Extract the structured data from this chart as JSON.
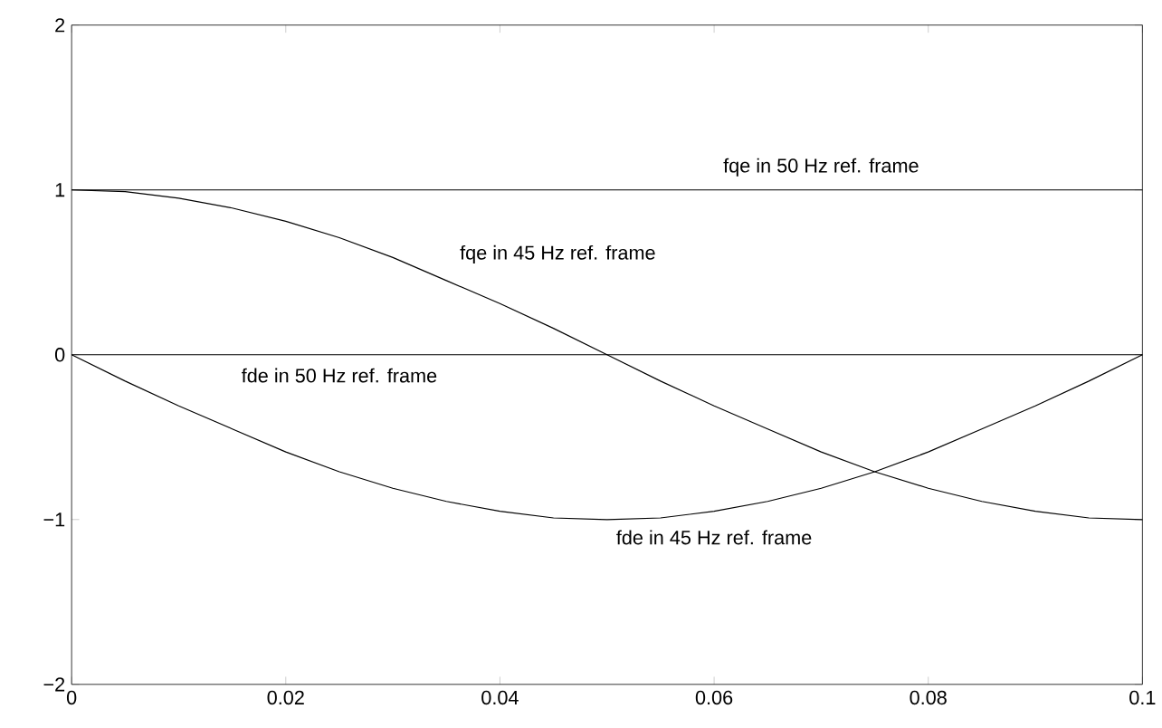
{
  "chart_data": {
    "type": "line",
    "x": [
      0,
      0.005,
      0.01,
      0.015,
      0.02,
      0.025,
      0.03,
      0.035,
      0.04,
      0.045,
      0.05,
      0.055,
      0.06,
      0.065,
      0.07,
      0.075,
      0.08,
      0.085,
      0.09,
      0.095,
      0.1
    ],
    "series": [
      {
        "name": "fqe in 50 Hz ref. frame",
        "color": "#000000",
        "values": [
          1,
          1,
          1,
          1,
          1,
          1,
          1,
          1,
          1,
          1,
          1,
          1,
          1,
          1,
          1,
          1,
          1,
          1,
          1,
          1,
          1
        ]
      },
      {
        "name": "fqe in 45 Hz ref. frame",
        "color": "#000000",
        "values": [
          1,
          0.99,
          0.95,
          0.89,
          0.81,
          0.71,
          0.59,
          0.45,
          0.31,
          0.16,
          0,
          -0.16,
          -0.31,
          -0.45,
          -0.59,
          -0.71,
          -0.81,
          -0.89,
          -0.95,
          -0.99,
          -1
        ]
      },
      {
        "name": "fde in 50 Hz ref. frame",
        "color": "#000000",
        "values": [
          0,
          0,
          0,
          0,
          0,
          0,
          0,
          0,
          0,
          0,
          0,
          0,
          0,
          0,
          0,
          0,
          0,
          0,
          0,
          0,
          0
        ]
      },
      {
        "name": "fde in 45 Hz ref. frame",
        "color": "#000000",
        "values": [
          0,
          -0.16,
          -0.31,
          -0.45,
          -0.59,
          -0.71,
          -0.81,
          -0.89,
          -0.95,
          -0.99,
          -1,
          -0.99,
          -0.95,
          -0.89,
          -0.81,
          -0.71,
          -0.59,
          -0.45,
          -0.31,
          -0.16,
          0
        ]
      }
    ],
    "xlim": [
      0,
      0.1
    ],
    "xticks": [
      0,
      0.02,
      0.04,
      0.06,
      0.08,
      0.1
    ],
    "ylim": [
      -2,
      2
    ],
    "yticks": [
      {
        "value": -2,
        "label": "−2"
      },
      {
        "value": -1,
        "label": "−1"
      },
      0,
      1,
      2
    ],
    "grid": false,
    "line_style": "solid",
    "marker": "none"
  }
}
